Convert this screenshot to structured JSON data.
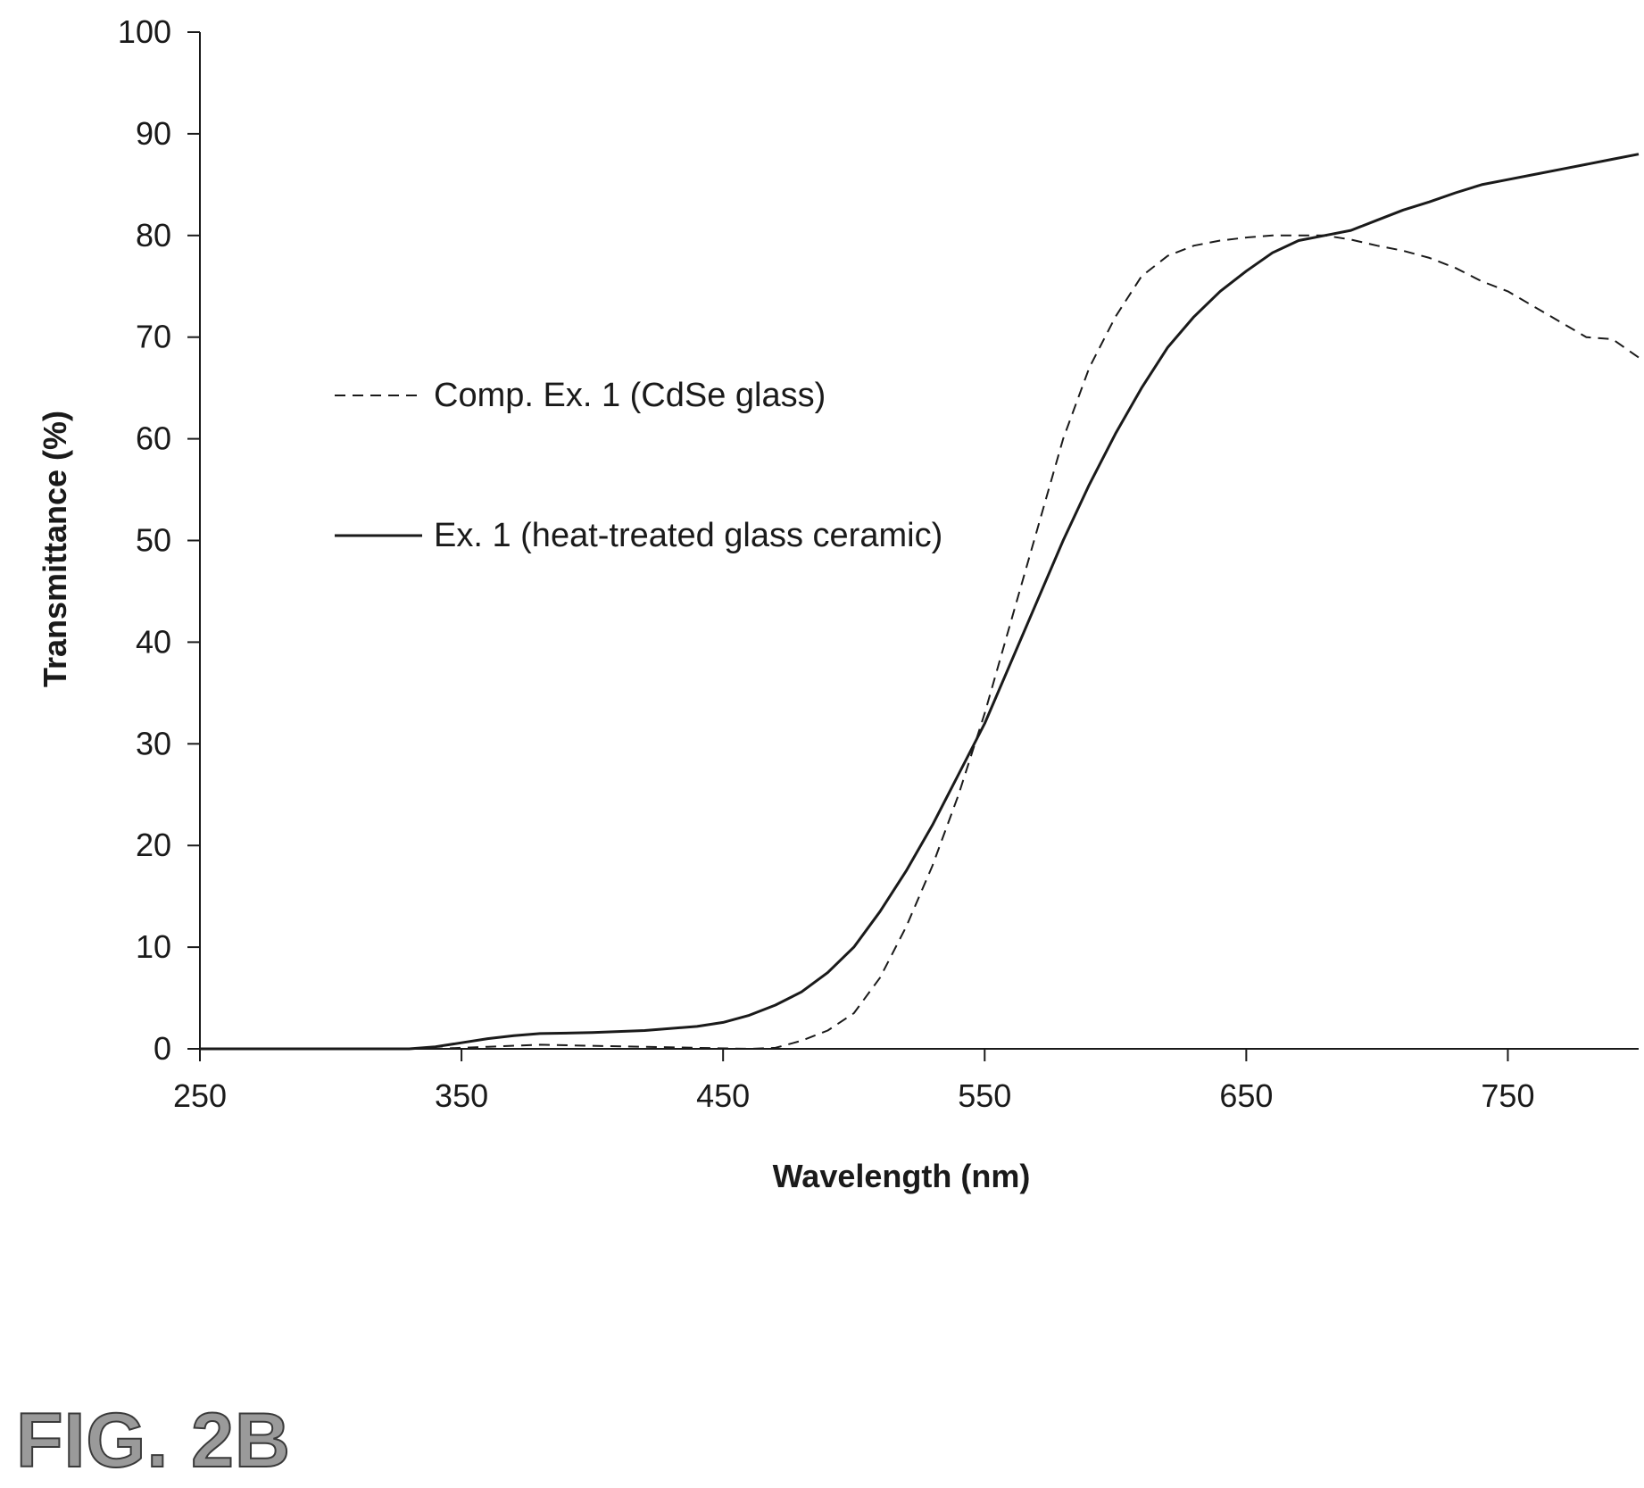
{
  "figure_label": "FIG. 2B",
  "chart_data": {
    "type": "line",
    "title": "",
    "xlabel": "Wavelength (nm)",
    "ylabel": "Transmittance (%)",
    "xlim": [
      250,
      800
    ],
    "ylim": [
      0,
      100
    ],
    "x_ticks": [
      250,
      350,
      450,
      550,
      650,
      750
    ],
    "y_ticks": [
      0,
      10,
      20,
      30,
      40,
      50,
      60,
      70,
      80,
      90,
      100
    ],
    "grid": false,
    "legend_position": "center-left",
    "series": [
      {
        "name": "Comp. Ex. 1 (CdSe glass)",
        "style": "dashed",
        "color": "#1a1a1a",
        "x": [
          250,
          300,
          340,
          360,
          380,
          400,
          420,
          440,
          460,
          470,
          480,
          490,
          500,
          510,
          520,
          530,
          540,
          550,
          560,
          570,
          580,
          590,
          600,
          610,
          620,
          630,
          640,
          650,
          660,
          670,
          680,
          690,
          700,
          710,
          720,
          730,
          740,
          750,
          760,
          770,
          780,
          790,
          800
        ],
        "y": [
          0,
          0,
          0,
          0.2,
          0.4,
          0.3,
          0.2,
          0.1,
          0,
          0.1,
          0.8,
          1.8,
          3.5,
          7,
          12,
          18,
          25,
          33,
          42,
          51,
          60,
          67,
          72,
          76,
          78,
          79,
          79.5,
          79.8,
          80,
          80,
          80,
          79.6,
          79,
          78.5,
          77.8,
          76.8,
          75.5,
          74.5,
          73,
          71.5,
          70,
          69.8,
          68
        ]
      },
      {
        "name": "Ex. 1 (heat-treated glass ceramic)",
        "style": "solid",
        "color": "#1a1a1a",
        "x": [
          250,
          300,
          330,
          340,
          350,
          360,
          370,
          380,
          400,
          420,
          440,
          450,
          460,
          470,
          480,
          490,
          500,
          510,
          520,
          530,
          540,
          550,
          560,
          570,
          580,
          590,
          600,
          610,
          620,
          630,
          640,
          650,
          660,
          670,
          680,
          690,
          700,
          710,
          720,
          730,
          740,
          750,
          760,
          770,
          780,
          790,
          800
        ],
        "y": [
          0,
          0,
          0,
          0.2,
          0.6,
          1,
          1.3,
          1.5,
          1.6,
          1.8,
          2.2,
          2.6,
          3.3,
          4.3,
          5.6,
          7.5,
          10,
          13.5,
          17.5,
          22,
          27,
          32,
          38,
          44,
          50,
          55.5,
          60.5,
          65,
          69,
          72,
          74.5,
          76.5,
          78.3,
          79.5,
          80,
          80.5,
          81.5,
          82.5,
          83.3,
          84.2,
          85,
          85.5,
          86,
          86.5,
          87,
          87.5,
          88
        ]
      }
    ]
  }
}
